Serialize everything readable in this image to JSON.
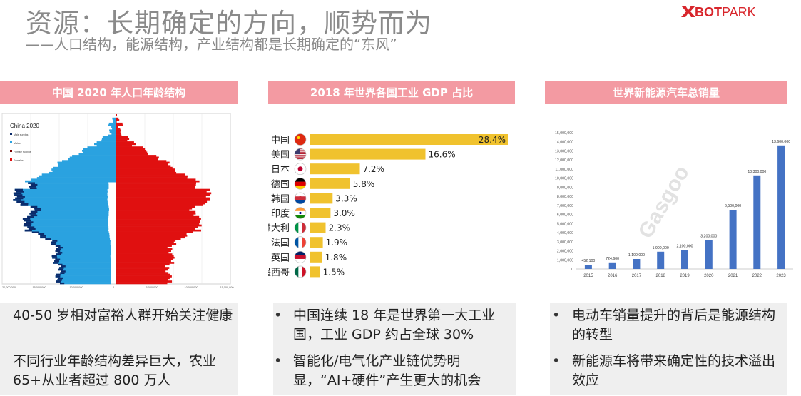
{
  "header": {
    "title": "资源：长期确定的方向，顺势而为",
    "subtitle": "——人口结构，能源结构，产业结构都是长期确定的“东风”",
    "logo": "BOTPARK"
  },
  "panels": [
    {
      "banner": "中国 2020 年人口年龄结构"
    },
    {
      "banner": "2018 年世界各国工业 GDP 占比"
    },
    {
      "banner": "世界新能源汽车总销量"
    }
  ],
  "pyramid": {
    "chart_title": "China 2020",
    "legend": [
      "Male surplus",
      "Males",
      "Female surplus",
      "Females"
    ],
    "x_ticks": [
      "20,000,000",
      "15,000,000",
      "10,000,000",
      "5,000,000",
      "0",
      "5,000,000",
      "10,000,000",
      "15,000,000"
    ],
    "colors": {
      "male": "#2aa2e0",
      "female": "#e01010",
      "male_surplus": "#0b2b6b"
    }
  },
  "chart_data": [
    {
      "type": "bar",
      "title": "2018 年世界各国工业 GDP 占比",
      "orientation": "horizontal",
      "categories": [
        "中国",
        "美国",
        "日本",
        "德国",
        "韩国",
        "印度",
        "意大利",
        "法国",
        "英国",
        "墨西哥"
      ],
      "values": [
        28.4,
        16.6,
        7.2,
        5.8,
        3.3,
        3.0,
        2.3,
        1.9,
        1.8,
        1.5
      ],
      "labels": [
        "28.4%",
        "16.6%",
        "7.2%",
        "5.8%",
        "3.3%",
        "3.0%",
        "2.3%",
        "1.9%",
        "1.8%",
        "1.5%"
      ],
      "color": "#f0c22e"
    },
    {
      "type": "bar",
      "title": "世界新能源汽车总销量",
      "categories": [
        "2015",
        "2016",
        "2017",
        "2018",
        "2019",
        "2020",
        "2021",
        "2022",
        "2023"
      ],
      "values": [
        452100,
        724600,
        1100000,
        1900000,
        2100000,
        3200000,
        6500000,
        10300000,
        13600000
      ],
      "labels": [
        "452,100",
        "724,600",
        "1,100,000",
        "1,900,000",
        "2,100,000",
        "3,200,000",
        "6,500,000",
        "10,300,000",
        "13,600,000"
      ],
      "ylim": [
        0,
        15000000
      ],
      "y_ticks": [
        "0",
        "1,000,000",
        "2,000,000",
        "3,000,000",
        "4,000,000",
        "5,000,000",
        "6,000,000",
        "7,000,000",
        "8,000,000",
        "9,000,000",
        "10,000,000",
        "11,000,000",
        "12,000,000",
        "13,000,000",
        "14,000,000",
        "15,000,000"
      ],
      "color": "#4472c4",
      "watermark": "盖世汽车 Gasgoo"
    }
  ],
  "texts": {
    "left": [
      "40-50 岁相对富裕人群开始关注健康",
      "不同行业年龄结构差异巨大，农业65+从业者超过 800 万人"
    ],
    "middle": [
      "中国连续 18 年是世界第一大工业国，工业 GDP 约占全球 30%",
      "智能化/电气化产业链优势明显，“AI+硬件”产生更大的机会"
    ],
    "right": [
      "电动车销量提升的背后是能源结构的转型",
      "新能源车将带来确定性的技术溢出效应"
    ]
  }
}
